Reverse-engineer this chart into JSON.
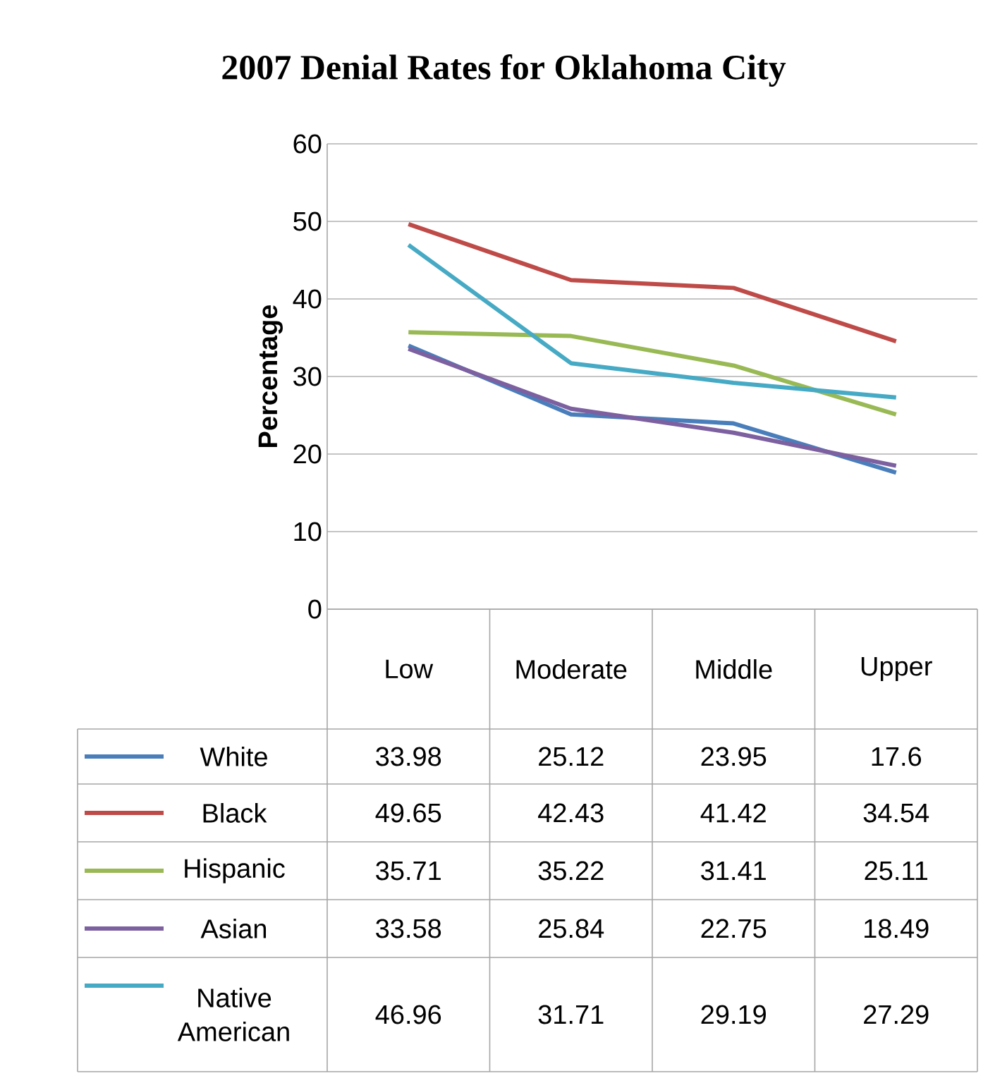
{
  "chart_data": {
    "type": "line",
    "title": "2007 Denial Rates for Oklahoma City",
    "ylabel": "Percentage",
    "categories": [
      "Low",
      "Moderate",
      "Middle",
      "Upper"
    ],
    "series": [
      {
        "name": "White",
        "color": "#4a7ebb",
        "values": [
          33.98,
          25.12,
          23.95,
          17.6
        ]
      },
      {
        "name": "Black",
        "color": "#be4b48",
        "values": [
          49.65,
          42.43,
          41.42,
          34.54
        ]
      },
      {
        "name": "Hispanic",
        "color": "#98b954",
        "values": [
          35.71,
          35.22,
          31.41,
          25.11
        ]
      },
      {
        "name": "Asian",
        "color": "#7d60a0",
        "values": [
          33.58,
          25.84,
          22.75,
          18.49
        ]
      },
      {
        "name": "Native American",
        "color": "#46aac5",
        "values": [
          46.96,
          31.71,
          29.19,
          27.29
        ]
      }
    ],
    "ylim": [
      0,
      60
    ],
    "yticks": [
      0,
      10,
      20,
      30,
      40,
      50,
      60
    ],
    "grid": "y",
    "legend": "bottom",
    "data_labels": true,
    "marker": "none",
    "line_style": "solid"
  }
}
